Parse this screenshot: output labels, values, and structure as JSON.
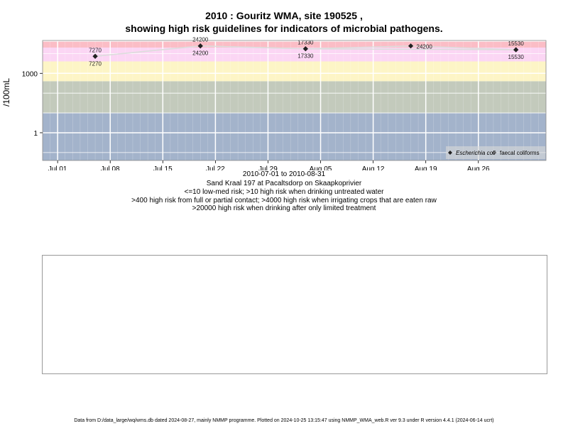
{
  "title_line1": "2010 : Gouritz WMA, site 190525 ,",
  "title_line2": "showing high risk guidelines for indicators of microbial pathogens.",
  "caption": {
    "date_range": "2010-07-01 to 2010-08-31",
    "site_desc": "Sand Kraal 197 at Pacaltsdorp on Skaapkoprivier",
    "line3": "<=10 low-med risk; >10 high risk when drinking untreated water",
    "line4": ">400 high risk from full or partial contact; >4000 high risk when irrigating crops that are eaten raw",
    "line5": ">20000 high risk when drinking after only limited treatment"
  },
  "footer": "Data from D:/data_large/wq/wms.db dated 2024-08-27, mainly NMMP programme. Plotted on 2024-10-25 13:15:47 using NMMP_WMA_web.R ver 9.3 under R version 4.4.1 (2024-06-14 ucrt)",
  "colors": {
    "band_low": "#a3b3cb",
    "band_mid": "#c3cabc",
    "band_yellow": "#fdf5c6",
    "band_pink": "#fbd6f4",
    "band_red": "#fbbdc6",
    "grid": "#ffffff",
    "marker": "#222222",
    "line": "#dddddd"
  },
  "chart_data": {
    "type": "scatter",
    "scale": "log10",
    "ylabel": "/100mL",
    "y_ticks": [
      {
        "value": 1,
        "label": "1"
      },
      {
        "value": 1000,
        "label": "1000"
      }
    ],
    "x_range": [
      "2010-06-29",
      "2010-09-04"
    ],
    "x_ticks": [
      {
        "date": "2010-07-01",
        "label": "Jul 01"
      },
      {
        "date": "2010-07-08",
        "label": "Jul 08"
      },
      {
        "date": "2010-07-15",
        "label": "Jul 15"
      },
      {
        "date": "2010-07-22",
        "label": "Jul 22"
      },
      {
        "date": "2010-07-29",
        "label": "Jul 29"
      },
      {
        "date": "2010-08-05",
        "label": "Aug 05"
      },
      {
        "date": "2010-08-12",
        "label": "Aug 12"
      },
      {
        "date": "2010-08-19",
        "label": "Aug 19"
      },
      {
        "date": "2010-08-26",
        "label": "Aug 26"
      }
    ],
    "risk_bands": [
      {
        "from": 0,
        "to": 10,
        "color": "#a3b3cb"
      },
      {
        "from": 10,
        "to": 400,
        "color": "#c3cabc"
      },
      {
        "from": 400,
        "to": 4000,
        "color": "#fdf5c6"
      },
      {
        "from": 4000,
        "to": 20000,
        "color": "#fbd6f4"
      },
      {
        "from": 20000,
        "to": 40000,
        "color": "#fbbdc6"
      }
    ],
    "series": [
      {
        "name": "Escherichia coli",
        "marker": "filled-diamond",
        "points": [
          {
            "date": "2010-07-06",
            "value": 7270,
            "label": "7270"
          },
          {
            "date": "2010-07-20",
            "value": 24200,
            "label": "24200"
          },
          {
            "date": "2010-08-03",
            "value": 17330,
            "label": "17330"
          },
          {
            "date": "2010-08-17",
            "value": 24200,
            "label": "24200"
          },
          {
            "date": "2010-08-31",
            "value": 15530,
            "label": "15530"
          }
        ]
      },
      {
        "name": "faecal coliforms",
        "marker": "open-diamond",
        "points": [
          {
            "date": "2010-07-06",
            "value": 7270,
            "label": "7270"
          },
          {
            "date": "2010-07-20",
            "value": 24200,
            "label": "24200"
          },
          {
            "date": "2010-08-03",
            "value": 17330,
            "label": "17330"
          },
          {
            "date": "2010-08-31",
            "value": 15530,
            "label": "15530"
          }
        ]
      }
    ],
    "legend_position": "bottom-right"
  }
}
